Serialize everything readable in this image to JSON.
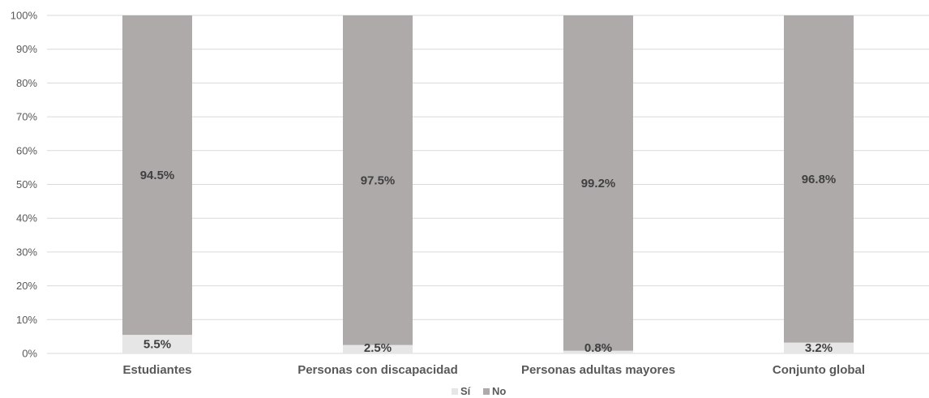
{
  "chart_data": {
    "type": "bar",
    "stacked": true,
    "percent_stacked": true,
    "categories": [
      "Estudiantes",
      "Personas con discapacidad",
      "Personas adultas mayores",
      "Conjunto global"
    ],
    "series": [
      {
        "name": "Sí",
        "values": [
          5.5,
          2.5,
          0.8,
          3.2
        ],
        "labels": [
          "5.5%",
          "2.5%",
          "0.8%",
          "3.2%"
        ],
        "color": "#e6e6e6"
      },
      {
        "name": "No",
        "values": [
          94.5,
          97.5,
          99.2,
          96.8
        ],
        "labels": [
          "94.5%",
          "97.5%",
          "99.2%",
          "96.8%"
        ],
        "color": "#aeaaaa"
      }
    ],
    "y_ticks": [
      "0%",
      "10%",
      "20%",
      "30%",
      "40%",
      "50%",
      "60%",
      "70%",
      "80%",
      "90%",
      "100%"
    ],
    "ylim": [
      0,
      100
    ],
    "grid": true,
    "grid_color": "#d9d9d9",
    "legend_position": "bottom"
  }
}
